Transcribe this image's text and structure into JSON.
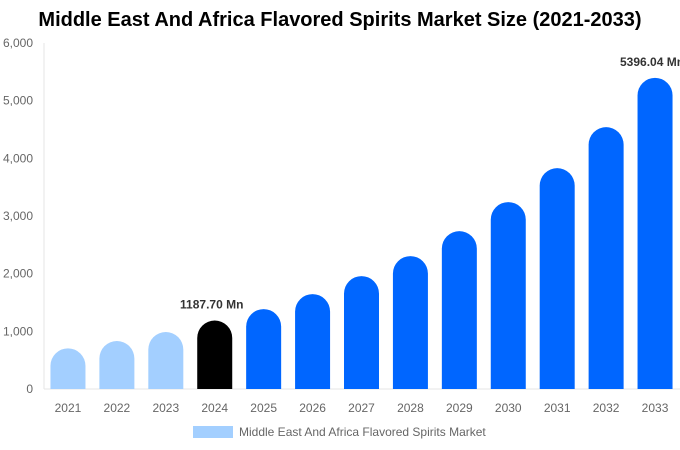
{
  "chart_data": {
    "type": "bar",
    "title": "Middle East And Africa Flavored Spirits Market Size (2021-2033)",
    "categories": [
      "2021",
      "2022",
      "2023",
      "2024",
      "2025",
      "2026",
      "2027",
      "2028",
      "2029",
      "2030",
      "2031",
      "2032",
      "2033"
    ],
    "series": [
      {
        "name": "Middle East And Africa Flavored Spirits Market",
        "values": [
          705,
          832,
          988,
          1187.7,
          1386,
          1646,
          1958,
          2305,
          2738,
          3241,
          3830,
          4541,
          5396.04
        ]
      }
    ],
    "data_labels": {
      "3": "1187.70 Mn",
      "12": "5396.04 Mn"
    },
    "ylim": [
      0,
      6000
    ],
    "yticks": [
      "0",
      "1,000",
      "2,000",
      "3,000",
      "4,000",
      "5,000",
      "6,000"
    ],
    "grid": false,
    "legend": "bottom",
    "colors": {
      "historical": "#a3cfff",
      "base_year": "#000000",
      "forecast": "#0066ff"
    }
  }
}
